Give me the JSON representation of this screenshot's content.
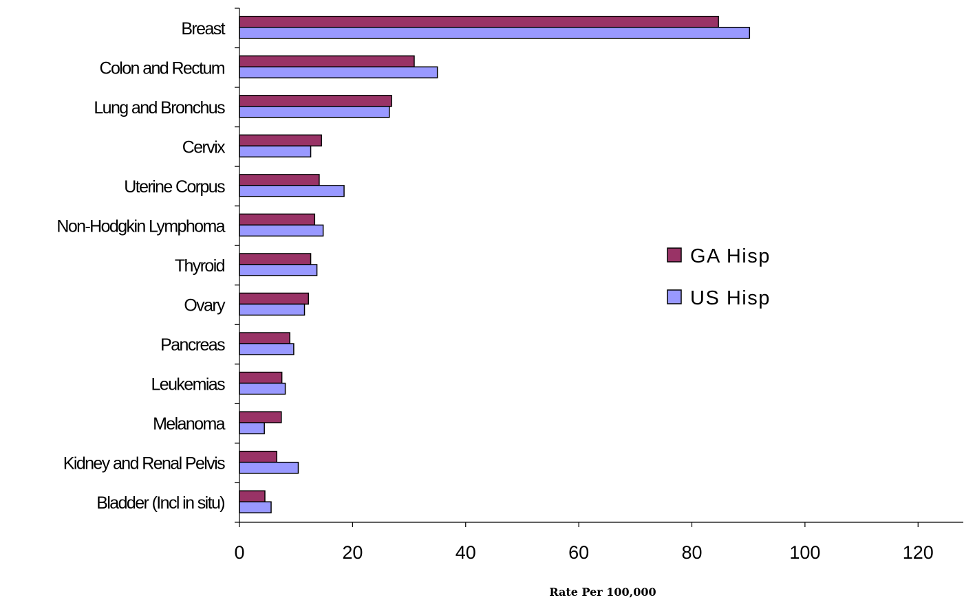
{
  "chart_data": {
    "type": "bar",
    "orientation": "horizontal",
    "categories": [
      "Breast",
      "Colon and Rectum",
      "Lung and Bronchus",
      "Cervix",
      "Uterine Corpus",
      "Non-Hodgkin Lymphoma",
      "Thyroid",
      "Ovary",
      "Pancreas",
      "Leukemias",
      "Melanoma",
      "Kidney and Renal Pelvis",
      "Bladder (Incl in situ)"
    ],
    "series": [
      {
        "name": "GA Hisp",
        "color": "#993366",
        "values": [
          84.7,
          30.9,
          26.9,
          14.5,
          14.1,
          13.3,
          12.6,
          12.2,
          8.9,
          7.5,
          7.4,
          6.6,
          4.5
        ]
      },
      {
        "name": "US Hisp",
        "color": "#9999ff",
        "values": [
          90.2,
          35.0,
          26.5,
          12.6,
          18.5,
          14.8,
          13.7,
          11.5,
          9.6,
          8.1,
          4.4,
          10.4,
          5.6
        ]
      }
    ],
    "xlim": [
      0,
      128
    ],
    "xticks": [
      0,
      20,
      40,
      60,
      80,
      100,
      120
    ],
    "xlabel": "Rate Per 100,000",
    "ylabel": "",
    "title": "",
    "grid": false,
    "legend_position": "right"
  }
}
